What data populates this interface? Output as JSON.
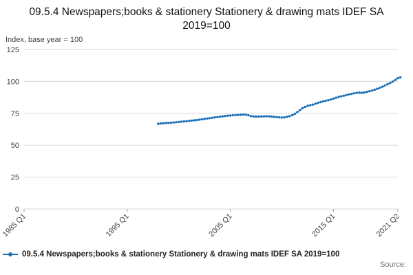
{
  "title": "09.5.4 Newspapers;books & stationery Stationery & drawing mats IDEF SA 2019=100",
  "axis_note": "Index, base year = 100",
  "source_label": "Source:",
  "legend": {
    "label": "09.5.4 Newspapers;books & stationery Stationery & drawing mats IDEF SA 2019=100"
  },
  "colors": {
    "line": "#1d70b8",
    "grid": "#d9d9d9",
    "tick_mark": "#999999",
    "axis_text": "#414042"
  },
  "chart_data": {
    "type": "line",
    "title": "09.5.4 Newspapers;books & stationery Stationery & drawing mats IDEF SA 2019=100",
    "xlabel": "",
    "ylabel": "Index, base year = 100",
    "ylim": [
      0,
      125
    ],
    "yticks": [
      0,
      25,
      50,
      75,
      100,
      125
    ],
    "grid": "horizontal",
    "legend_position": "bottom",
    "x_domain": [
      1985.0,
      2021.25
    ],
    "xticks": [
      {
        "t": 1985.0,
        "label": "1985 Q1"
      },
      {
        "t": 1995.0,
        "label": "1995 Q1"
      },
      {
        "t": 2005.0,
        "label": "2005 Q1"
      },
      {
        "t": 2015.0,
        "label": "2015 Q1"
      },
      {
        "t": 2021.25,
        "label": "2021 Q2"
      }
    ],
    "series": [
      {
        "name": "09.5.4 Newspapers;books & stationery Stationery & drawing mats IDEF SA 2019=100",
        "x_start": 1998.0,
        "x_step": 0.25,
        "values": [
          66.8,
          67.0,
          67.2,
          67.4,
          67.5,
          67.6,
          67.8,
          68.0,
          68.2,
          68.4,
          68.6,
          68.8,
          69.0,
          69.3,
          69.5,
          69.7,
          70.0,
          70.3,
          70.6,
          70.9,
          71.2,
          71.5,
          71.8,
          72.0,
          72.3,
          72.6,
          72.9,
          73.1,
          73.3,
          73.5,
          73.6,
          73.7,
          73.8,
          73.9,
          73.9,
          73.5,
          72.8,
          72.5,
          72.4,
          72.4,
          72.5,
          72.6,
          72.7,
          72.6,
          72.4,
          72.2,
          72.0,
          71.8,
          71.7,
          71.8,
          72.2,
          72.8,
          73.5,
          74.5,
          76.0,
          77.5,
          79.0,
          80.0,
          80.8,
          81.3,
          81.8,
          82.5,
          83.2,
          83.8,
          84.3,
          84.8,
          85.3,
          85.8,
          86.5,
          87.2,
          87.8,
          88.3,
          88.8,
          89.3,
          89.8,
          90.2,
          90.6,
          91.0,
          91.2,
          91.0,
          91.3,
          91.8,
          92.3,
          92.8,
          93.5,
          94.2,
          95.0,
          95.8,
          96.8,
          97.8,
          98.8,
          99.8,
          101.2,
          102.6,
          103.2
        ]
      }
    ]
  }
}
